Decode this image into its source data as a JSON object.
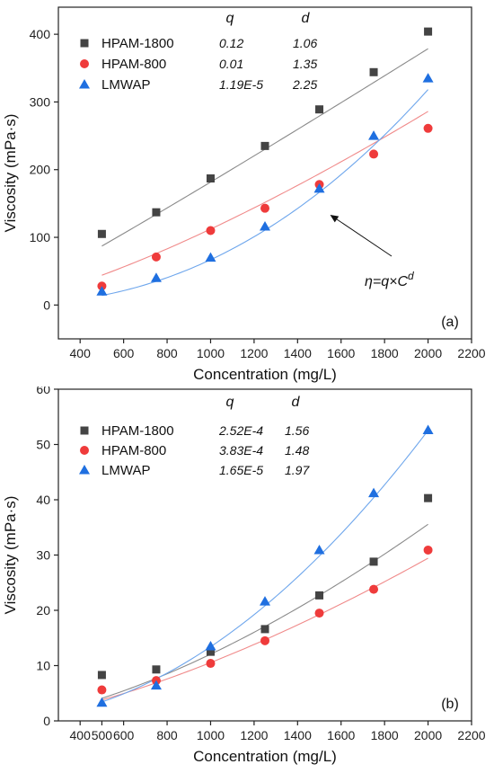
{
  "colors": {
    "HPAM-1800": "#444444",
    "HPAM-800": "#ef3b3b",
    "LMWAP": "#1f6fe0",
    "fit_HPAM-1800": "#8a8a8a",
    "fit_HPAM-800": "#f08a8a",
    "fit_LMWAP": "#6ea6ec"
  },
  "markers": {
    "HPAM-1800": "square",
    "HPAM-800": "circle",
    "LMWAP": "triangle"
  },
  "param_headers": {
    "q": "q",
    "d": "d"
  },
  "chart_data": [
    {
      "type": "scatter",
      "panel_label": "(a)",
      "xlabel": "Concentration (mg/L)",
      "ylabel": "Viscosity (mPa·s)",
      "xlim": [
        300,
        2200
      ],
      "ylim": [
        -50,
        440
      ],
      "xticks": [
        400,
        600,
        800,
        1000,
        1200,
        1400,
        1600,
        1800,
        2000,
        2200
      ],
      "yticks": [
        0,
        100,
        200,
        300,
        400
      ],
      "x": [
        500,
        750,
        1000,
        1250,
        1500,
        1750,
        2000
      ],
      "annotation": {
        "text": "η=q×C",
        "sup": "d",
        "points_to": [
          1500,
          120
        ]
      },
      "series": [
        {
          "name": "HPAM-1800",
          "q": "0.12",
          "d": "1.06",
          "q_fit": 0.12,
          "d_fit": 1.06,
          "values": [
            105,
            137,
            187,
            235,
            289,
            344,
            404
          ]
        },
        {
          "name": "HPAM-800",
          "q": "0.01",
          "d": "1.35",
          "q_fit": 0.01,
          "d_fit": 1.35,
          "values": [
            28,
            71,
            110,
            143,
            178,
            223,
            261
          ]
        },
        {
          "name": "LMWAP",
          "q": "1.19E-5",
          "d": "2.25",
          "q_fit": 1.19e-05,
          "d_fit": 2.25,
          "values": [
            20,
            40,
            70,
            116,
            172,
            250,
            335
          ]
        }
      ]
    },
    {
      "type": "scatter",
      "panel_label": "(b)",
      "xlabel": "Concentration (mg/L)",
      "ylabel": "Viscosity (mPa·s)",
      "xlim": [
        300,
        2200
      ],
      "ylim": [
        0,
        60
      ],
      "xticks": [
        400,
        500,
        600,
        800,
        1000,
        1200,
        1400,
        1600,
        1800,
        2000,
        2200
      ],
      "yticks": [
        0,
        10,
        20,
        30,
        40,
        50,
        60
      ],
      "x": [
        500,
        750,
        1000,
        1250,
        1500,
        1750,
        2000
      ],
      "series": [
        {
          "name": "HPAM-1800",
          "q": "2.52E-4",
          "d": "1.56",
          "q_fit": 0.000252,
          "d_fit": 1.56,
          "values": [
            8.3,
            9.3,
            12.5,
            16.6,
            22.7,
            28.8,
            40.3
          ]
        },
        {
          "name": "HPAM-800",
          "q": "3.83E-4",
          "d": "1.48",
          "q_fit": 0.000383,
          "d_fit": 1.48,
          "values": [
            5.6,
            7.3,
            10.4,
            14.5,
            19.5,
            23.8,
            30.9
          ]
        },
        {
          "name": "LMWAP",
          "q": "1.65E-5",
          "d": "1.97",
          "q_fit": 1.65e-05,
          "d_fit": 1.97,
          "values": [
            3.3,
            6.4,
            13.5,
            21.6,
            30.9,
            41.2,
            52.6
          ]
        }
      ]
    }
  ]
}
